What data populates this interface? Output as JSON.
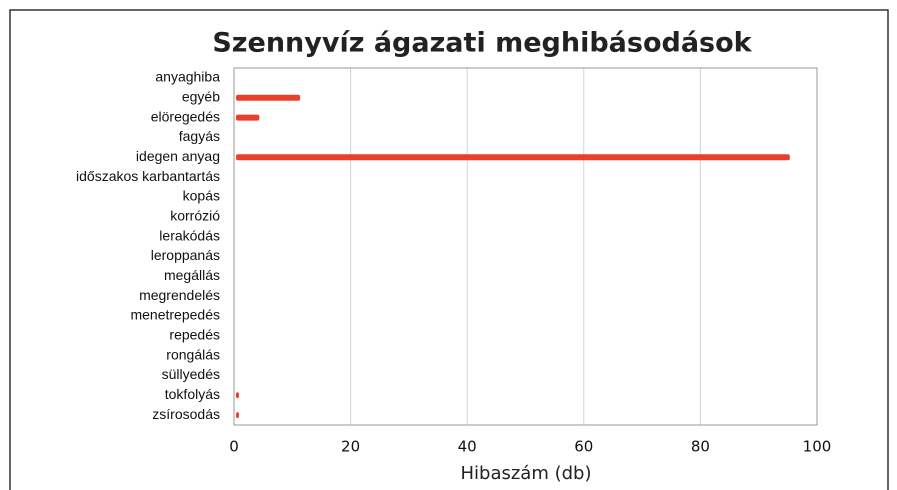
{
  "chart_data": {
    "type": "hbar",
    "title": "Szennyvíz ágazati meghibásodások",
    "x_label": "Hibaszám (db)",
    "categories": [
      "anyaghiba",
      "egyéb",
      "elöregedés",
      "fagyás",
      "idegen anyag",
      "időszakos karbantartás",
      "kopás",
      "korrózió",
      "lerakódás",
      "leroppanás",
      "megállás",
      "megrendelés",
      "menetrepedés",
      "repedés",
      "rongálás",
      "süllyedés",
      "tokfolyás",
      "zsírosodás"
    ],
    "values": [
      0,
      11,
      4,
      0,
      95,
      0,
      0,
      0,
      0,
      0,
      0,
      0,
      0,
      0,
      0,
      0,
      0.5,
      0.5
    ],
    "color": "#e8402a",
    "xlim": [
      0,
      100
    ],
    "xticks": [
      0,
      20,
      40,
      60,
      80,
      100
    ],
    "grid": true
  }
}
